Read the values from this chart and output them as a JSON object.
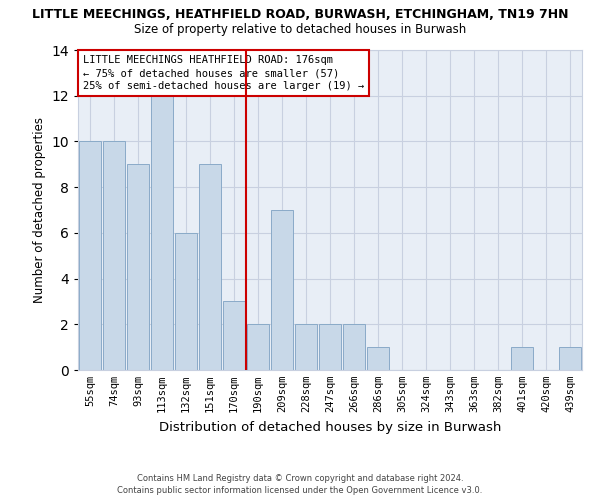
{
  "title": "LITTLE MEECHINGS, HEATHFIELD ROAD, BURWASH, ETCHINGHAM, TN19 7HN",
  "subtitle": "Size of property relative to detached houses in Burwash",
  "xlabel": "Distribution of detached houses by size in Burwash",
  "ylabel": "Number of detached properties",
  "bar_labels": [
    "55sqm",
    "74sqm",
    "93sqm",
    "113sqm",
    "132sqm",
    "151sqm",
    "170sqm",
    "190sqm",
    "209sqm",
    "228sqm",
    "247sqm",
    "266sqm",
    "286sqm",
    "305sqm",
    "324sqm",
    "343sqm",
    "363sqm",
    "382sqm",
    "401sqm",
    "420sqm",
    "439sqm"
  ],
  "bar_values": [
    10,
    10,
    9,
    12,
    6,
    9,
    3,
    2,
    7,
    2,
    2,
    2,
    1,
    0,
    0,
    0,
    0,
    0,
    1,
    0,
    1
  ],
  "bar_color": "#c8d8e8",
  "bar_edge_color": "#8aaac8",
  "vline_x": 7,
  "vline_color": "#cc0000",
  "annotation_title": "LITTLE MEECHINGS HEATHFIELD ROAD: 176sqm",
  "annotation_line1": "← 75% of detached houses are smaller (57)",
  "annotation_line2": "25% of semi-detached houses are larger (19) →",
  "annotation_box_color": "#ffffff",
  "annotation_box_edge": "#cc0000",
  "ylim": [
    0,
    14
  ],
  "yticks": [
    0,
    2,
    4,
    6,
    8,
    10,
    12,
    14
  ],
  "grid_color": "#c8d0e0",
  "bg_color": "#e8eef6",
  "fig_bg_color": "#ffffff",
  "footer1": "Contains HM Land Registry data © Crown copyright and database right 2024.",
  "footer2": "Contains public sector information licensed under the Open Government Licence v3.0."
}
